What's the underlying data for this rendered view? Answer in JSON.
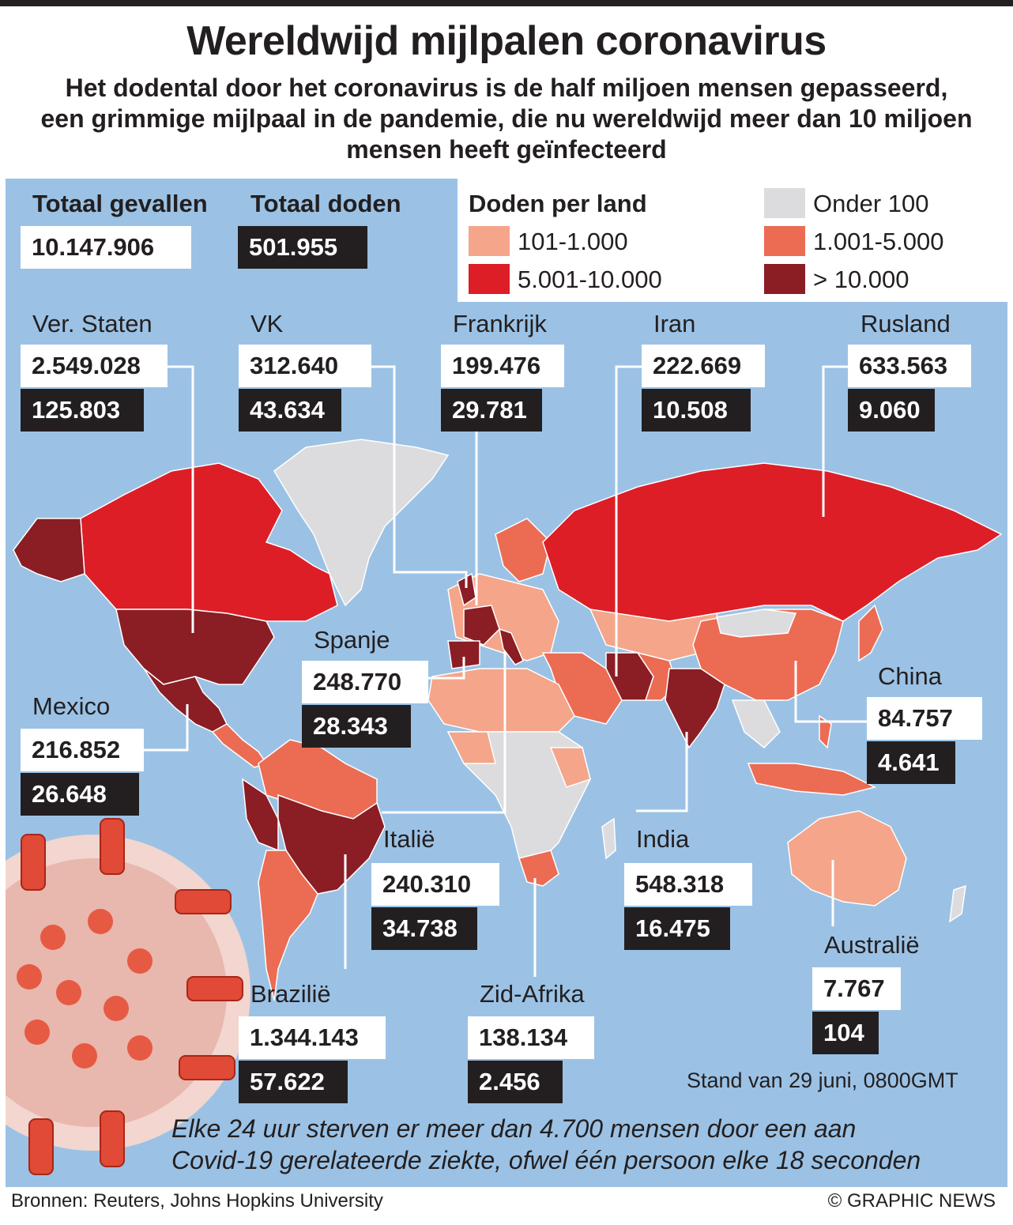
{
  "header": {
    "title": "Wereldwijd mijlpalen coronavirus",
    "subtitle_lines": [
      "Het dodental door het coronavirus is de half miljoen mensen gepasseerd,",
      "een grimmige mijlpaal in de pandemie, die nu wereldwijd meer dan 10 miljoen",
      "mensen heeft geïnfecteerd"
    ]
  },
  "totals": {
    "cases_label": "Totaal gevallen",
    "cases_value": "10.147.906",
    "deaths_label": "Totaal doden",
    "deaths_value": "501.955"
  },
  "legend": {
    "title": "Doden per land",
    "items": [
      {
        "label": "Onder 100",
        "color": "#dcdcde"
      },
      {
        "label": "101-1.000",
        "color": "#f4a58a"
      },
      {
        "label": "1.001-5.000",
        "color": "#ec6b53"
      },
      {
        "label": "5.001-10.000",
        "color": "#dd1e26"
      },
      {
        "label": "> 10.000",
        "color": "#8b1d24"
      }
    ]
  },
  "countries": {
    "us": {
      "name": "Ver. Staten",
      "cases": "2.549.028",
      "deaths": "125.803"
    },
    "uk": {
      "name": "VK",
      "cases": "312.640",
      "deaths": "43.634"
    },
    "france": {
      "name": "Frankrijk",
      "cases": "199.476",
      "deaths": "29.781"
    },
    "iran": {
      "name": "Iran",
      "cases": "222.669",
      "deaths": "10.508"
    },
    "russia": {
      "name": "Rusland",
      "cases": "633.563",
      "deaths": "9.060"
    },
    "spain": {
      "name": "Spanje",
      "cases": "248.770",
      "deaths": "28.343"
    },
    "china": {
      "name": "China",
      "cases": "84.757",
      "deaths": "4.641"
    },
    "mexico": {
      "name": "Mexico",
      "cases": "216.852",
      "deaths": "26.648"
    },
    "italy": {
      "name": "Italië",
      "cases": "240.310",
      "deaths": "34.738"
    },
    "india": {
      "name": "India",
      "cases": "548.318",
      "deaths": "16.475"
    },
    "australia": {
      "name": "Australië",
      "cases": "7.767",
      "deaths": "104"
    },
    "brazil": {
      "name": "Brazilië",
      "cases": "1.344.143",
      "deaths": "57.622"
    },
    "south_africa": {
      "name": "Zid-Afrika",
      "cases": "138.134",
      "deaths": "2.456"
    }
  },
  "stand": "Stand van 29 juni, 0800GMT",
  "note_lines": [
    "Elke 24 uur sterven er meer dan 4.700 mensen door een aan",
    "Covid-19 gerelateerde ziekte, ofwel één persoon elke 18 seconden"
  ],
  "footer": {
    "sources": "Bronnen: Reuters, Johns Hopkins University",
    "credit": "© GRAPHIC NEWS"
  }
}
